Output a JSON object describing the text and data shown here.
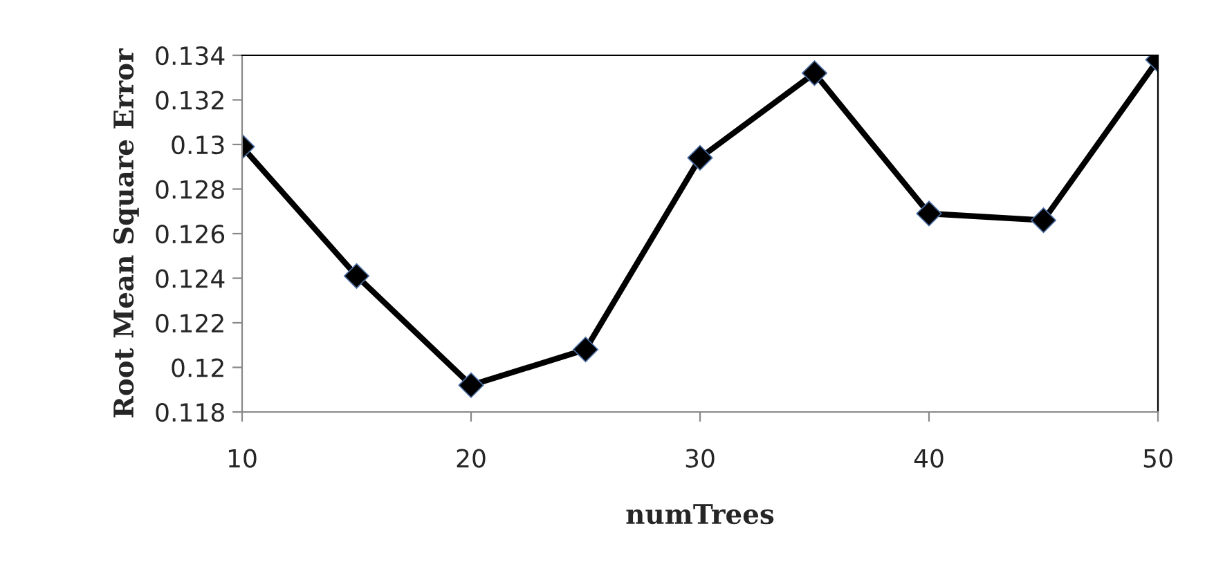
{
  "chart_data": {
    "type": "line",
    "xlabel": "numTrees",
    "ylabel": "Root Mean Square Error",
    "x": [
      10,
      15,
      20,
      25,
      30,
      35,
      40,
      45,
      50
    ],
    "series": [
      {
        "color": "#000000",
        "values": [
          0.1299,
          0.1241,
          0.1192,
          0.1208,
          0.1294,
          0.1332,
          0.1269,
          0.1266,
          0.1338
        ]
      }
    ],
    "xlim": [
      10,
      50
    ],
    "xticks": [
      10,
      20,
      30,
      40,
      50
    ],
    "ylim": [
      0.118,
      0.134
    ],
    "yticks": [
      0.118,
      0.12,
      0.122,
      0.124,
      0.126,
      0.128,
      0.13,
      0.132,
      0.134
    ],
    "grid": false,
    "legend": false,
    "marker": "diamond",
    "line_style": "solid"
  }
}
